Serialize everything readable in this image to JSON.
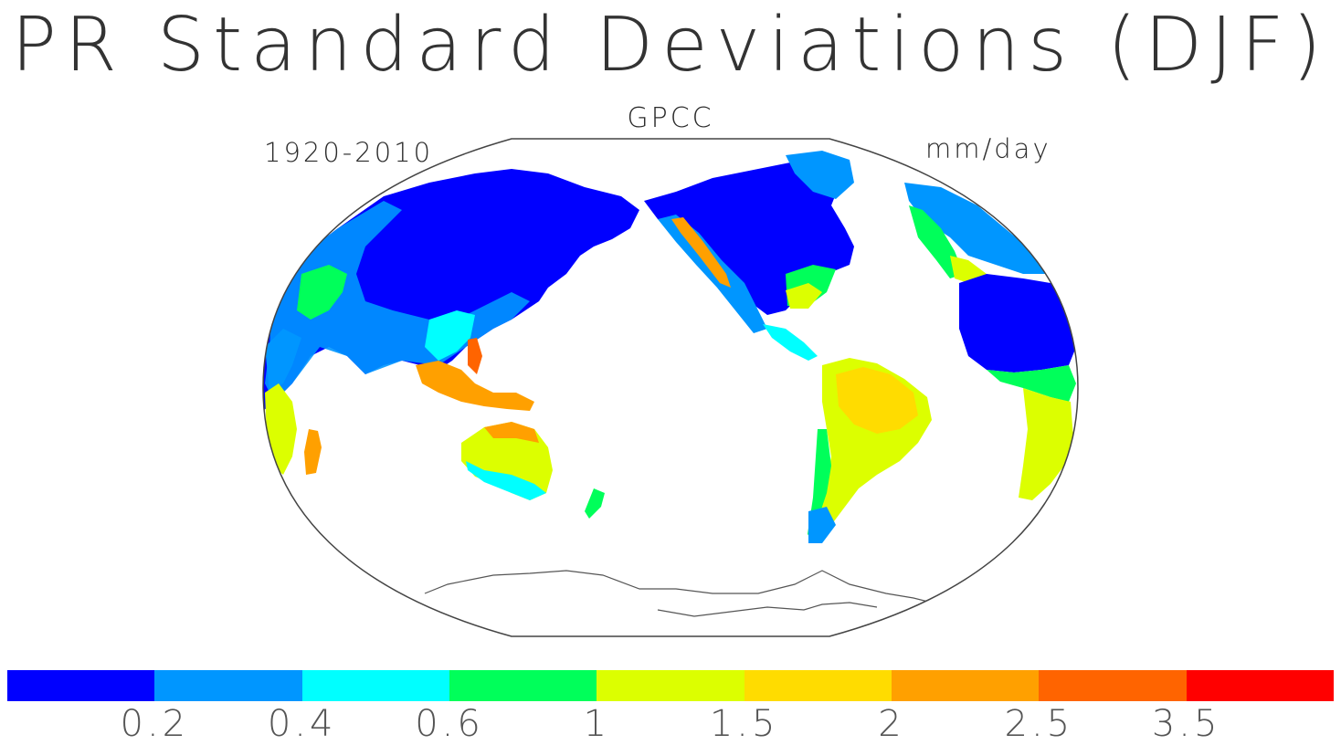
{
  "figure": {
    "title": "PR Standard Deviations (DJF)",
    "subtitle": "GPCC",
    "period": "1920-2010",
    "units": "mm/day"
  },
  "colorbar": {
    "colors": [
      "#0000ff",
      "#0096ff",
      "#00ffff",
      "#00ff5a",
      "#dcff00",
      "#ffdc00",
      "#ffa000",
      "#ff6400",
      "#ff0000"
    ],
    "labels": [
      "0.2",
      "0.4",
      "0.6",
      "1",
      "1.5",
      "2",
      "2.5",
      "3.5"
    ]
  },
  "map": {
    "projection": "Robinson",
    "center_longitude": "180",
    "ocean_color": "#ffffff",
    "coastline_color": "#555555"
  }
}
